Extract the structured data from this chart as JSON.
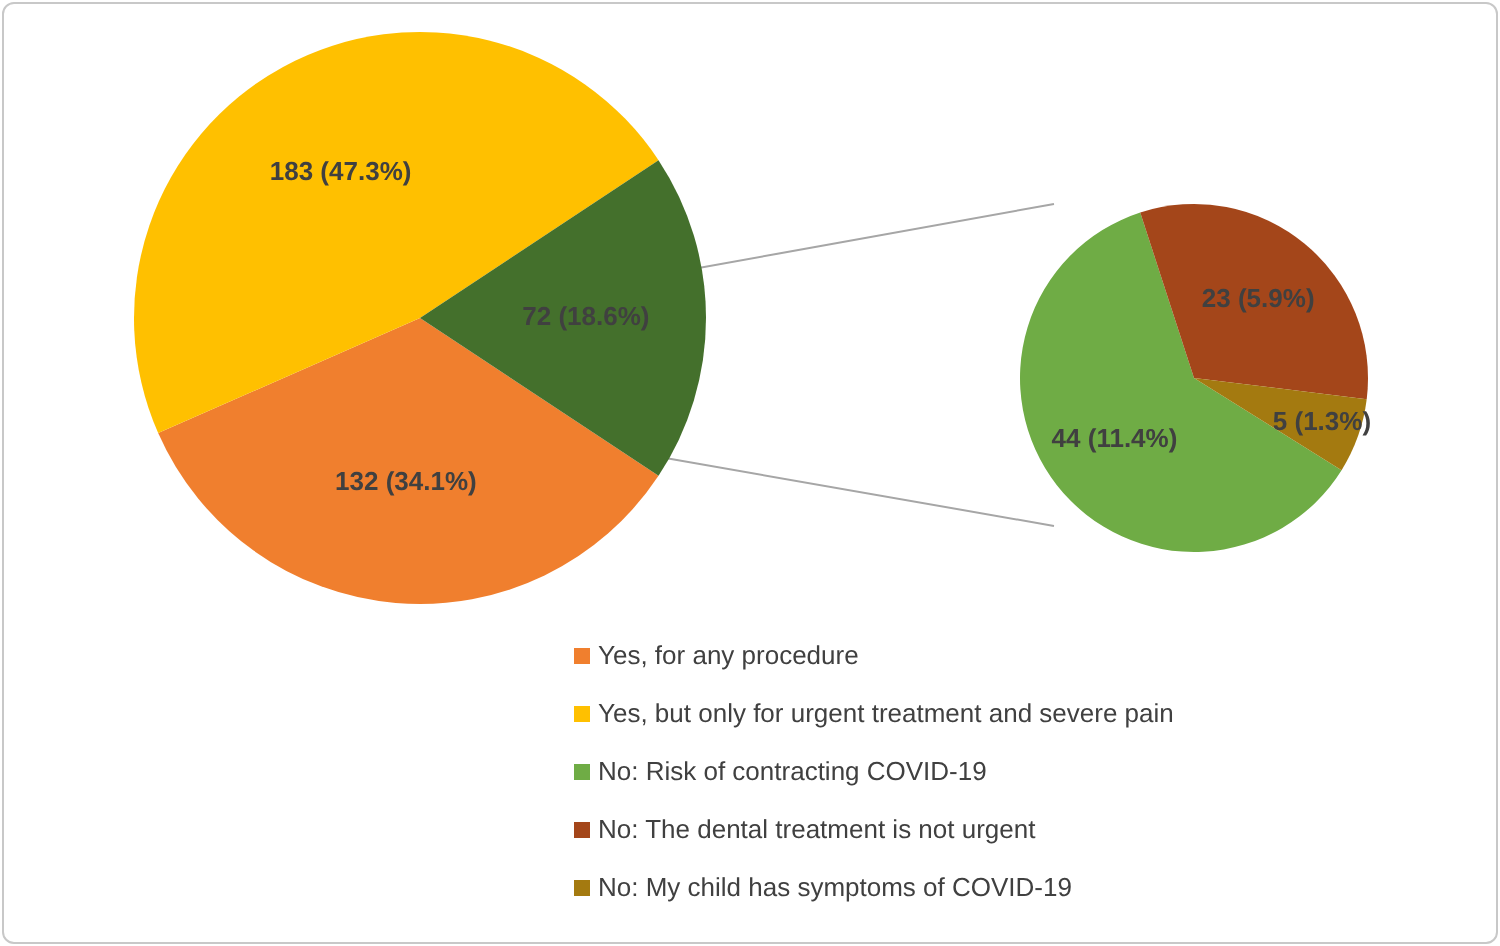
{
  "chart_data": [
    {
      "type": "pie",
      "categories": [
        "Yes, for any procedure",
        "Yes, but only for urgent treatment and severe pain",
        null
      ],
      "values": [
        132,
        183,
        72
      ],
      "colors": [
        "#f07f2e",
        "#ffc000",
        "#44702c"
      ],
      "value_labels": [
        "132 (34.1%)",
        "183 (47.3%)",
        "72 (18.6%)"
      ],
      "legend": "bottom"
    },
    {
      "type": "pie",
      "categories": [
        "No: Risk of contracting COVID-19",
        "No: The dental treatment is not urgent",
        "No: My child has symptoms of COVID-19"
      ],
      "values": [
        44,
        23,
        5
      ],
      "colors": [
        "#6fac45",
        "#a4461a",
        "#a47a10"
      ],
      "value_labels": [
        "44 (11.4%)",
        "23 (5.9%)",
        "5 (1.3%)"
      ],
      "legend": "bottom"
    }
  ]
}
